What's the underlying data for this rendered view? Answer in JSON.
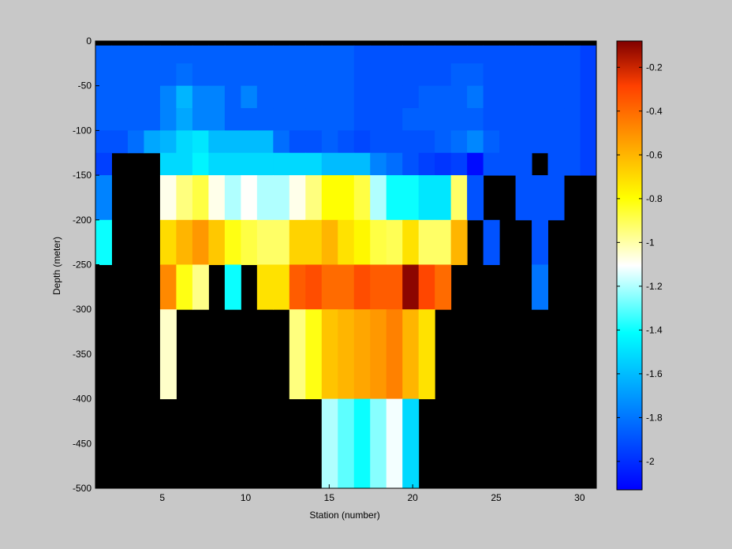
{
  "chart_data": {
    "type": "heatmap",
    "title": "",
    "xlabel": "Station (number)",
    "ylabel": "Depth (meter)",
    "xlim": [
      1,
      31
    ],
    "ylim": [
      -500,
      0
    ],
    "x_ticks": [
      5,
      10,
      15,
      20,
      25,
      30
    ],
    "y_ticks": [
      0,
      -50,
      -100,
      -150,
      -200,
      -250,
      -300,
      -350,
      -400,
      -450,
      -500
    ],
    "colorbar": {
      "colormap": "jet",
      "range": [
        -2.13,
        -0.08
      ],
      "ticks": [
        -0.2,
        -0.4,
        -0.6,
        -0.8,
        -1,
        -1.2,
        -1.4,
        -1.6,
        -1.8,
        -2
      ]
    },
    "missing_color": "#000000",
    "grid": false,
    "stations": [
      1,
      2,
      3,
      4,
      5,
      6,
      7,
      8,
      9,
      10,
      11,
      12,
      13,
      14,
      15,
      16,
      17,
      18,
      19,
      20,
      21,
      22,
      23,
      24,
      25,
      26,
      27,
      28,
      29,
      30,
      31
    ],
    "depth_layers": [
      {
        "top": 0,
        "bottom": -5
      },
      {
        "top": -5,
        "bottom": -25
      },
      {
        "top": -25,
        "bottom": -50
      },
      {
        "top": -50,
        "bottom": -75
      },
      {
        "top": -75,
        "bottom": -100
      },
      {
        "top": -100,
        "bottom": -125
      },
      {
        "top": -125,
        "bottom": -150
      },
      {
        "top": -150,
        "bottom": -200
      },
      {
        "top": -200,
        "bottom": -250
      },
      {
        "top": -250,
        "bottom": -300
      },
      {
        "top": -300,
        "bottom": -400
      },
      {
        "top": -400,
        "bottom": -500
      }
    ],
    "values": [
      [
        null,
        null,
        null,
        null,
        null,
        null,
        null,
        null,
        null,
        null,
        null,
        null,
        null,
        null,
        null,
        null,
        null,
        null,
        null,
        null,
        null,
        null,
        null,
        null,
        null,
        null,
        null,
        null,
        null,
        null,
        null
      ],
      [
        -1.86,
        -1.86,
        -1.86,
        -1.86,
        -1.86,
        -1.86,
        -1.86,
        -1.86,
        -1.86,
        -1.86,
        -1.86,
        -1.86,
        -1.86,
        -1.86,
        -1.86,
        -1.86,
        -1.9,
        -1.9,
        -1.9,
        -1.9,
        -1.9,
        -1.9,
        -1.9,
        -1.9,
        -1.9,
        -1.9,
        -1.9,
        -1.9,
        -1.9,
        -1.9,
        -1.95
      ],
      [
        -1.86,
        -1.86,
        -1.86,
        -1.86,
        -1.86,
        -1.82,
        -1.86,
        -1.86,
        -1.86,
        -1.86,
        -1.86,
        -1.86,
        -1.86,
        -1.86,
        -1.86,
        -1.86,
        -1.9,
        -1.9,
        -1.9,
        -1.9,
        -1.9,
        -1.9,
        -1.86,
        -1.86,
        -1.9,
        -1.9,
        -1.9,
        -1.9,
        -1.9,
        -1.9,
        -1.95
      ],
      [
        -1.86,
        -1.86,
        -1.86,
        -1.86,
        -1.76,
        -1.62,
        -1.76,
        -1.76,
        -1.86,
        -1.76,
        -1.86,
        -1.86,
        -1.86,
        -1.86,
        -1.86,
        -1.86,
        -1.9,
        -1.9,
        -1.9,
        -1.9,
        -1.86,
        -1.86,
        -1.86,
        -1.8,
        -1.9,
        -1.9,
        -1.9,
        -1.9,
        -1.9,
        -1.9,
        -1.95
      ],
      [
        -1.86,
        -1.86,
        -1.86,
        -1.86,
        -1.76,
        -1.66,
        -1.76,
        -1.76,
        -1.86,
        -1.86,
        -1.86,
        -1.86,
        -1.86,
        -1.86,
        -1.86,
        -1.86,
        -1.9,
        -1.9,
        -1.9,
        -1.86,
        -1.86,
        -1.86,
        -1.86,
        -1.86,
        -1.9,
        -1.9,
        -1.9,
        -1.9,
        -1.9,
        -1.9,
        -1.95
      ],
      [
        -1.9,
        -1.9,
        -1.82,
        -1.66,
        -1.62,
        -1.52,
        -1.48,
        -1.6,
        -1.6,
        -1.6,
        -1.6,
        -1.82,
        -1.9,
        -1.9,
        -1.86,
        -1.9,
        -1.93,
        -1.9,
        -1.9,
        -1.9,
        -1.9,
        -1.86,
        -1.82,
        -1.75,
        -1.86,
        -1.9,
        -1.9,
        -1.9,
        -1.9,
        -1.9,
        -1.95
      ],
      [
        -1.95,
        null,
        null,
        null,
        -1.52,
        -1.52,
        -1.44,
        -1.52,
        -1.52,
        -1.52,
        -1.52,
        -1.52,
        -1.52,
        -1.52,
        -1.6,
        -1.6,
        -1.6,
        -1.76,
        -1.82,
        -1.9,
        -1.95,
        -1.98,
        -1.95,
        -2.1,
        -1.9,
        -1.9,
        -1.9,
        null,
        -1.9,
        -1.9,
        -1.95
      ],
      [
        -1.76,
        null,
        null,
        null,
        -1.08,
        -0.95,
        -0.88,
        -1.08,
        -1.2,
        -1.1,
        -1.2,
        -1.2,
        -1.08,
        -0.95,
        -0.8,
        -0.8,
        -0.88,
        -1.2,
        -1.4,
        -1.4,
        -1.48,
        -1.48,
        -0.92,
        -1.9,
        null,
        null,
        -1.9,
        -1.9,
        -1.9,
        null,
        null
      ],
      [
        -1.4,
        null,
        null,
        null,
        -0.7,
        -0.6,
        -0.52,
        -0.65,
        -0.82,
        -0.88,
        -0.92,
        -0.92,
        -0.68,
        -0.68,
        -0.6,
        -0.72,
        -0.78,
        -0.88,
        -0.9,
        -0.72,
        -0.92,
        -0.92,
        -0.6,
        null,
        -1.9,
        null,
        null,
        -1.9,
        null,
        null,
        null
      ],
      [
        null,
        null,
        null,
        null,
        -0.48,
        -0.82,
        -0.96,
        null,
        -1.4,
        null,
        -0.72,
        -0.72,
        -0.36,
        -0.32,
        -0.4,
        -0.4,
        -0.32,
        -0.36,
        -0.36,
        -0.1,
        -0.3,
        -0.4,
        null,
        null,
        null,
        null,
        null,
        -1.8,
        null,
        null,
        null
      ],
      [
        null,
        null,
        null,
        null,
        -1.04,
        null,
        null,
        null,
        null,
        null,
        null,
        null,
        -0.95,
        -0.82,
        -0.64,
        -0.6,
        -0.56,
        -0.52,
        -0.46,
        -0.6,
        -0.72,
        null,
        null,
        null,
        null,
        null,
        null,
        null,
        null,
        null,
        null
      ],
      [
        null,
        null,
        null,
        null,
        null,
        null,
        null,
        null,
        null,
        null,
        null,
        null,
        null,
        null,
        -1.2,
        -1.3,
        -1.4,
        -1.25,
        -1.12,
        -1.52,
        null,
        null,
        null,
        null,
        null,
        null,
        null,
        null,
        null,
        null,
        null
      ],
      [
        null,
        null,
        null,
        null,
        null,
        null,
        null,
        null,
        null,
        null,
        null,
        null,
        null,
        null,
        null,
        null,
        null,
        null,
        null,
        null,
        null,
        null,
        null,
        null,
        null,
        null,
        null,
        null,
        null,
        null,
        null
      ]
    ]
  }
}
